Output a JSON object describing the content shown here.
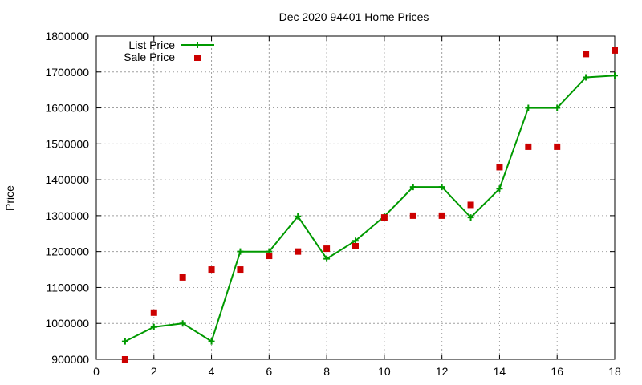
{
  "chart_data": {
    "type": "line",
    "title": "Dec 2020 94401 Home Prices",
    "xlabel": "",
    "ylabel": "Price",
    "xlim": [
      0,
      18
    ],
    "ylim": [
      900000,
      1800000
    ],
    "xticks": [
      0,
      2,
      4,
      6,
      8,
      10,
      12,
      14,
      16,
      18
    ],
    "yticks": [
      900000,
      1000000,
      1100000,
      1200000,
      1300000,
      1400000,
      1500000,
      1600000,
      1700000,
      1800000
    ],
    "grid": true,
    "legend": "top-left",
    "series": [
      {
        "name": "List Price",
        "style": "linespoints",
        "color": "#009900",
        "x": [
          1,
          2,
          3,
          4,
          5,
          6,
          7,
          8,
          9,
          10,
          11,
          12,
          13,
          14,
          15,
          16,
          17,
          18
        ],
        "values": [
          950000,
          990000,
          1000000,
          950000,
          1200000,
          1200000,
          1298000,
          1180000,
          1230000,
          1298000,
          1380000,
          1380000,
          1295000,
          1375000,
          1600000,
          1600000,
          1685000,
          1690000
        ]
      },
      {
        "name": "Sale Price",
        "style": "points",
        "color": "#cc0000",
        "x": [
          1,
          2,
          3,
          4,
          5,
          6,
          7,
          8,
          9,
          10,
          11,
          12,
          13,
          14,
          15,
          16,
          17,
          18
        ],
        "values": [
          900000,
          1030000,
          1128000,
          1150000,
          1150000,
          1188000,
          1200000,
          1208000,
          1215000,
          1295000,
          1300000,
          1300000,
          1330000,
          1435000,
          1492000,
          1492000,
          1750000,
          1760000
        ]
      }
    ]
  }
}
